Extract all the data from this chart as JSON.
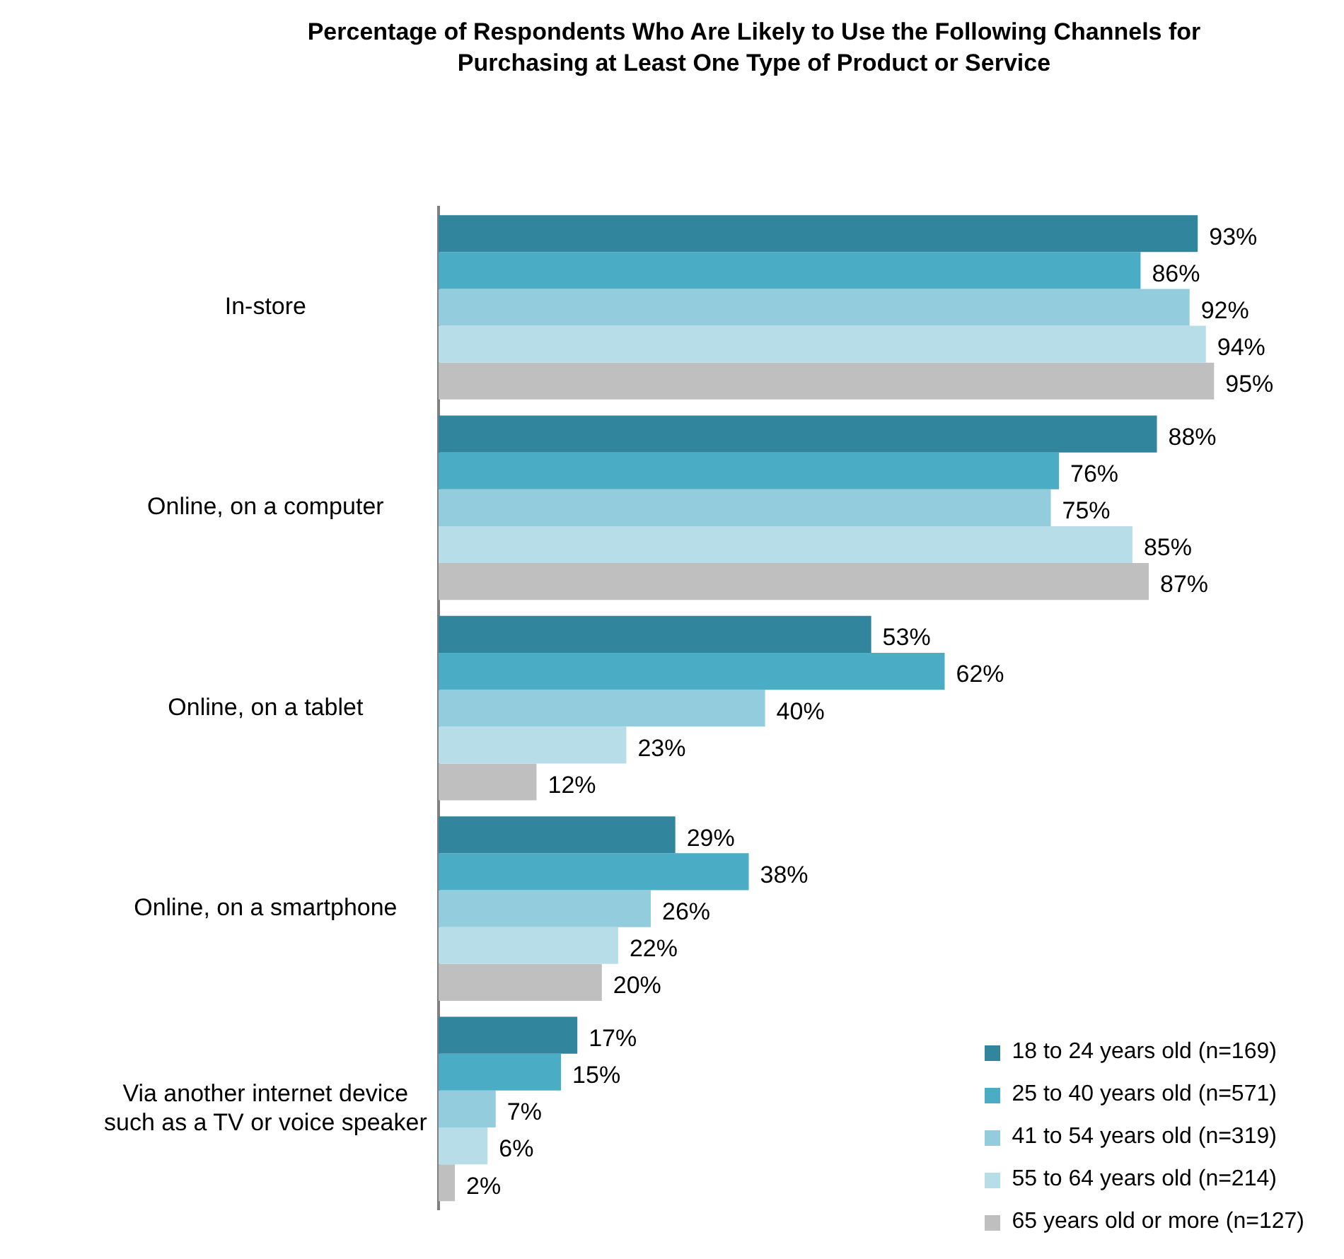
{
  "chart_data": {
    "type": "bar",
    "orientation": "horizontal",
    "title": "Percentage of Respondents Who Are Likely to Use the Following Channels for Purchasing at Least One Type of Product or Service",
    "categories": [
      "In-store",
      "Online, on a computer",
      "Online, on a tablet",
      "Online, on a smartphone",
      "Via another internet device such as a TV or voice speaker"
    ],
    "tick_labels": "y",
    "legend": "bottom right",
    "series": [
      {
        "name": "18 to 24 years old (n=169)",
        "color": "#31859c",
        "values": [
          93,
          88,
          53,
          29,
          17
        ],
        "value_labels": [
          "93%",
          "88%",
          "53%",
          "29%",
          "17%"
        ]
      },
      {
        "name": "25 to 40 years old (n=571)",
        "color": "#4bacc6",
        "values": [
          86,
          76,
          62,
          38,
          15
        ],
        "value_labels": [
          "86%",
          "76%",
          "62%",
          "38%",
          "15%"
        ]
      },
      {
        "name": "41 to 54 years old (n=319)",
        "color": "#93cddd",
        "values": [
          92,
          75,
          40,
          26,
          7
        ],
        "value_labels": [
          "92%",
          "75%",
          "40%",
          "26%",
          "7%"
        ]
      },
      {
        "name": "55 to 64 years old (n=214)",
        "color": "#b7dee8",
        "values": [
          94,
          85,
          23,
          22,
          6
        ],
        "value_labels": [
          "94%",
          "85%",
          "23%",
          "22%",
          "6%"
        ]
      },
      {
        "name": "65 years old or more (n=127)",
        "color": "#bfbfbf",
        "values": [
          95,
          87,
          12,
          20,
          2
        ],
        "value_labels": [
          "95%",
          "87%",
          "12%",
          "20%",
          "2%"
        ]
      }
    ]
  }
}
